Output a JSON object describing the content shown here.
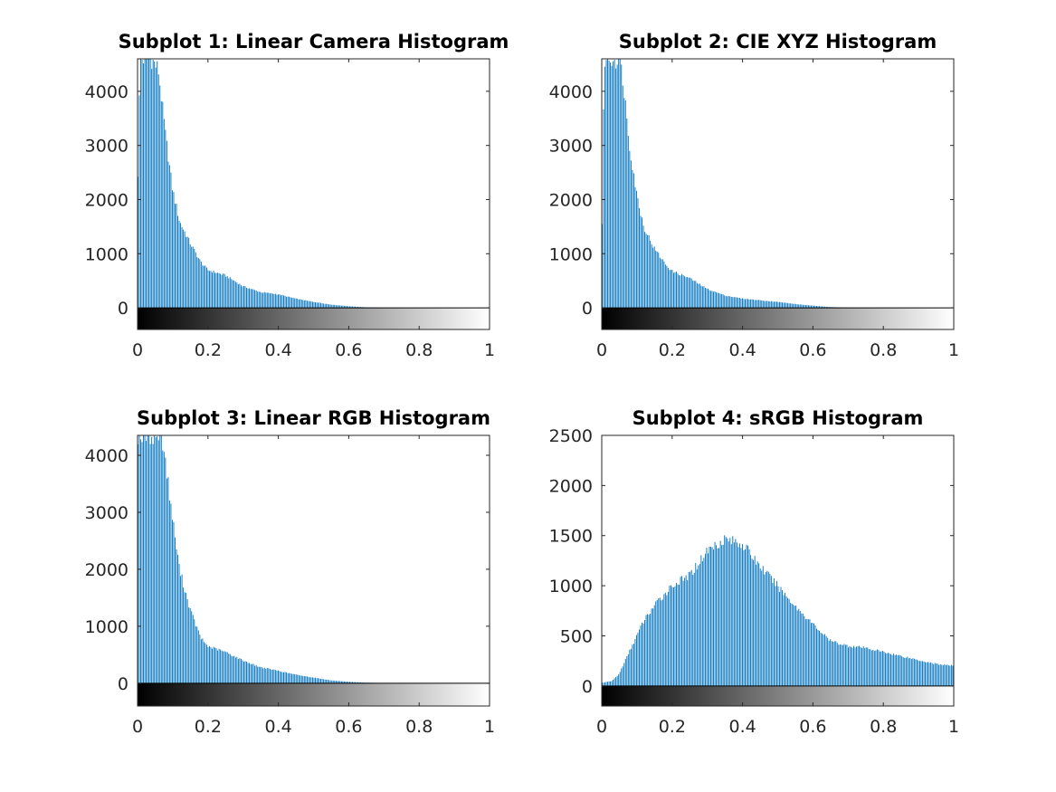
{
  "chart_data": [
    {
      "type": "bar",
      "title": "Subplot 1: Linear Camera Histogram",
      "xlabel": "",
      "ylabel": "",
      "xlim": [
        0,
        1
      ],
      "ylim": [
        -400,
        4600
      ],
      "xticks": [
        "0",
        "0.2",
        "0.4",
        "0.6",
        "0.8",
        "1"
      ],
      "yticks": [
        "0",
        "1000",
        "2000",
        "3000",
        "4000"
      ],
      "colorbar": "grayscale gradient from black at 0 to white at 1 below the zero line",
      "bar_color": "#0072bd",
      "grid": false,
      "bins": 256,
      "profile": [
        [
          0.0,
          1800
        ],
        [
          0.008,
          4600
        ],
        [
          0.04,
          4600
        ],
        [
          0.06,
          4400
        ],
        [
          0.08,
          3200
        ],
        [
          0.1,
          2200
        ],
        [
          0.12,
          1600
        ],
        [
          0.15,
          1200
        ],
        [
          0.18,
          850
        ],
        [
          0.2,
          700
        ],
        [
          0.25,
          600
        ],
        [
          0.3,
          400
        ],
        [
          0.35,
          290
        ],
        [
          0.4,
          250
        ],
        [
          0.45,
          170
        ],
        [
          0.5,
          110
        ],
        [
          0.55,
          60
        ],
        [
          0.6,
          30
        ],
        [
          0.65,
          10
        ],
        [
          0.7,
          2
        ],
        [
          1.0,
          0
        ]
      ]
    },
    {
      "type": "bar",
      "title": "Subplot 2: CIE XYZ Histogram",
      "xlabel": "",
      "ylabel": "",
      "xlim": [
        0,
        1
      ],
      "ylim": [
        -400,
        4600
      ],
      "xticks": [
        "0",
        "0.2",
        "0.4",
        "0.6",
        "0.8",
        "1"
      ],
      "yticks": [
        "0",
        "1000",
        "2000",
        "3000",
        "4000"
      ],
      "colorbar": "grayscale gradient from black at 0 to white at 1 below the zero line",
      "bar_color": "#0072bd",
      "grid": false,
      "bins": 256,
      "profile": [
        [
          0.0,
          600
        ],
        [
          0.008,
          4600
        ],
        [
          0.05,
          4600
        ],
        [
          0.06,
          4300
        ],
        [
          0.08,
          3000
        ],
        [
          0.1,
          2100
        ],
        [
          0.12,
          1500
        ],
        [
          0.15,
          1100
        ],
        [
          0.18,
          820
        ],
        [
          0.2,
          680
        ],
        [
          0.25,
          550
        ],
        [
          0.3,
          350
        ],
        [
          0.35,
          230
        ],
        [
          0.4,
          170
        ],
        [
          0.45,
          140
        ],
        [
          0.5,
          110
        ],
        [
          0.55,
          70
        ],
        [
          0.6,
          40
        ],
        [
          0.65,
          15
        ],
        [
          0.7,
          5
        ],
        [
          1.0,
          0
        ]
      ]
    },
    {
      "type": "bar",
      "title": "Subplot 3: Linear RGB Histogram",
      "xlabel": "",
      "ylabel": "",
      "xlim": [
        0,
        1
      ],
      "ylim": [
        -400,
        4350
      ],
      "xticks": [
        "0",
        "0.2",
        "0.4",
        "0.6",
        "0.8",
        "1"
      ],
      "yticks": [
        "0",
        "1000",
        "2000",
        "3000",
        "4000"
      ],
      "colorbar": "grayscale gradient from black at 0 to white at 1 below the zero line",
      "bar_color": "#0072bd",
      "grid": false,
      "bins": 256,
      "profile": [
        [
          0.0,
          4350
        ],
        [
          0.07,
          4350
        ],
        [
          0.08,
          3900
        ],
        [
          0.1,
          2900
        ],
        [
          0.12,
          2000
        ],
        [
          0.15,
          1300
        ],
        [
          0.18,
          800
        ],
        [
          0.2,
          650
        ],
        [
          0.25,
          550
        ],
        [
          0.3,
          400
        ],
        [
          0.35,
          280
        ],
        [
          0.4,
          220
        ],
        [
          0.45,
          150
        ],
        [
          0.5,
          100
        ],
        [
          0.55,
          50
        ],
        [
          0.6,
          25
        ],
        [
          0.65,
          10
        ],
        [
          0.7,
          3
        ],
        [
          1.0,
          0
        ]
      ]
    },
    {
      "type": "bar",
      "title": "Subplot 4: sRGB Histogram",
      "xlabel": "",
      "ylabel": "",
      "xlim": [
        0,
        1
      ],
      "ylim": [
        -200,
        2500
      ],
      "xticks": [
        "0",
        "0.2",
        "0.4",
        "0.6",
        "0.8",
        "1"
      ],
      "yticks": [
        "0",
        "500",
        "1000",
        "1500",
        "2000",
        "2500"
      ],
      "colorbar": "grayscale gradient from black at 0 to white at 1 below the zero line",
      "bar_color": "#0072bd",
      "grid": false,
      "bins": 256,
      "profile": [
        [
          0.0,
          30
        ],
        [
          0.03,
          50
        ],
        [
          0.05,
          120
        ],
        [
          0.08,
          350
        ],
        [
          0.1,
          500
        ],
        [
          0.12,
          650
        ],
        [
          0.15,
          800
        ],
        [
          0.2,
          1000
        ],
        [
          0.25,
          1100
        ],
        [
          0.3,
          1350
        ],
        [
          0.35,
          1470
        ],
        [
          0.4,
          1420
        ],
        [
          0.45,
          1200
        ],
        [
          0.5,
          1000
        ],
        [
          0.55,
          800
        ],
        [
          0.6,
          620
        ],
        [
          0.65,
          450
        ],
        [
          0.7,
          400
        ],
        [
          0.75,
          380
        ],
        [
          0.8,
          340
        ],
        [
          0.85,
          300
        ],
        [
          0.9,
          260
        ],
        [
          0.95,
          220
        ],
        [
          1.0,
          200
        ]
      ]
    }
  ]
}
